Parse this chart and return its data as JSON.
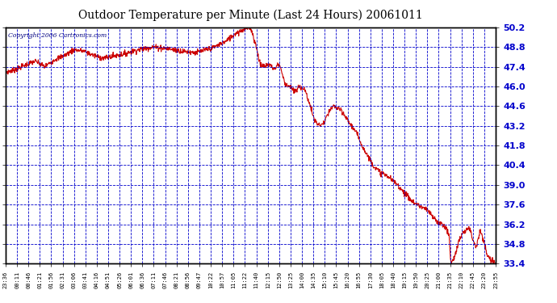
{
  "title": "Outdoor Temperature per Minute (Last 24 Hours) 20061011",
  "copyright_text": "Copyright 2006 Cartronics.com",
  "background_color": "#ffffff",
  "plot_bg_color": "#ffffff",
  "grid_color": "#0000cc",
  "line_color": "#cc0000",
  "title_color": "#000000",
  "ylim": [
    33.4,
    50.2
  ],
  "yticks": [
    33.4,
    34.8,
    36.2,
    37.6,
    39.0,
    40.4,
    41.8,
    43.2,
    44.6,
    46.0,
    47.4,
    48.8,
    50.2
  ],
  "x_labels": [
    "23:36",
    "00:11",
    "00:46",
    "01:21",
    "01:56",
    "02:31",
    "03:06",
    "03:41",
    "04:16",
    "04:51",
    "05:26",
    "06:01",
    "06:36",
    "07:11",
    "07:46",
    "08:21",
    "08:56",
    "09:47",
    "10:22",
    "10:57",
    "11:05",
    "11:22",
    "11:40",
    "12:15",
    "12:50",
    "13:25",
    "14:00",
    "14:35",
    "15:10",
    "15:45",
    "16:20",
    "16:55",
    "17:30",
    "18:05",
    "18:40",
    "19:15",
    "19:50",
    "20:25",
    "21:00",
    "21:35",
    "22:10",
    "22:45",
    "23:20",
    "23:55"
  ],
  "profile_points": [
    [
      0.0,
      47.0
    ],
    [
      0.02,
      47.2
    ],
    [
      0.06,
      47.8
    ],
    [
      0.08,
      47.4
    ],
    [
      0.1,
      47.9
    ],
    [
      0.12,
      48.2
    ],
    [
      0.14,
      48.6
    ],
    [
      0.16,
      48.5
    ],
    [
      0.18,
      48.2
    ],
    [
      0.2,
      48.0
    ],
    [
      0.24,
      48.3
    ],
    [
      0.27,
      48.6
    ],
    [
      0.3,
      48.8
    ],
    [
      0.33,
      48.7
    ],
    [
      0.36,
      48.5
    ],
    [
      0.39,
      48.4
    ],
    [
      0.42,
      48.7
    ],
    [
      0.45,
      49.2
    ],
    [
      0.47,
      49.8
    ],
    [
      0.49,
      50.1
    ],
    [
      0.5,
      50.2
    ],
    [
      0.51,
      49.0
    ],
    [
      0.52,
      47.5
    ],
    [
      0.53,
      47.4
    ],
    [
      0.535,
      47.6
    ],
    [
      0.54,
      47.5
    ],
    [
      0.55,
      47.2
    ],
    [
      0.555,
      47.6
    ],
    [
      0.56,
      47.5
    ],
    [
      0.565,
      46.8
    ],
    [
      0.57,
      46.2
    ],
    [
      0.58,
      46.0
    ],
    [
      0.59,
      45.6
    ],
    [
      0.6,
      46.0
    ],
    [
      0.61,
      45.8
    ],
    [
      0.62,
      44.8
    ],
    [
      0.63,
      43.6
    ],
    [
      0.64,
      43.2
    ],
    [
      0.65,
      43.4
    ],
    [
      0.66,
      44.2
    ],
    [
      0.67,
      44.6
    ],
    [
      0.68,
      44.4
    ],
    [
      0.69,
      44.0
    ],
    [
      0.7,
      43.5
    ],
    [
      0.71,
      43.0
    ],
    [
      0.72,
      42.4
    ],
    [
      0.73,
      41.6
    ],
    [
      0.74,
      41.0
    ],
    [
      0.75,
      40.4
    ],
    [
      0.76,
      40.0
    ],
    [
      0.77,
      39.8
    ],
    [
      0.78,
      39.6
    ],
    [
      0.79,
      39.3
    ],
    [
      0.8,
      39.0
    ],
    [
      0.81,
      38.6
    ],
    [
      0.82,
      38.2
    ],
    [
      0.83,
      37.8
    ],
    [
      0.84,
      37.6
    ],
    [
      0.85,
      37.4
    ],
    [
      0.86,
      37.2
    ],
    [
      0.865,
      37.0
    ],
    [
      0.87,
      36.8
    ],
    [
      0.875,
      36.6
    ],
    [
      0.88,
      36.4
    ],
    [
      0.885,
      36.3
    ],
    [
      0.89,
      36.2
    ],
    [
      0.895,
      36.1
    ],
    [
      0.9,
      35.8
    ],
    [
      0.905,
      35.4
    ],
    [
      0.906,
      34.8
    ],
    [
      0.907,
      34.0
    ],
    [
      0.908,
      33.6
    ],
    [
      0.909,
      33.4
    ],
    [
      0.915,
      33.8
    ],
    [
      0.92,
      34.4
    ],
    [
      0.925,
      35.0
    ],
    [
      0.93,
      35.4
    ],
    [
      0.935,
      35.6
    ],
    [
      0.94,
      35.8
    ],
    [
      0.945,
      36.0
    ],
    [
      0.948,
      35.8
    ],
    [
      0.95,
      35.6
    ],
    [
      0.952,
      35.2
    ],
    [
      0.955,
      35.0
    ],
    [
      0.958,
      34.8
    ],
    [
      0.96,
      34.6
    ],
    [
      0.963,
      35.0
    ],
    [
      0.966,
      35.4
    ],
    [
      0.969,
      35.8
    ],
    [
      0.972,
      35.4
    ],
    [
      0.975,
      35.0
    ],
    [
      0.978,
      34.6
    ],
    [
      0.981,
      34.2
    ],
    [
      0.984,
      33.9
    ],
    [
      0.99,
      33.6
    ],
    [
      1.0,
      33.4
    ]
  ]
}
